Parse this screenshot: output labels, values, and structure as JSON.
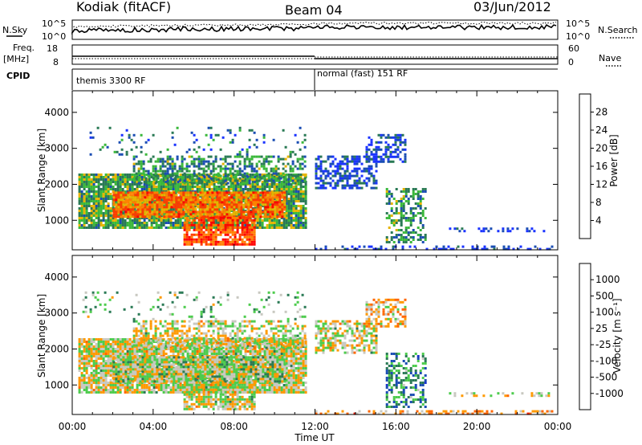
{
  "header": {
    "station": "Kodiak (fitACF)",
    "beam": "Beam 04",
    "date": "03/Jun/2012"
  },
  "top_panels": {
    "nsky_label": "N.Sky",
    "nsearch_label": "N.Search",
    "freq_label_line1": "Freq.",
    "freq_label_line2": "[MHz]",
    "nave_label": "Nave",
    "cpid_label": "CPID",
    "noise_left_ticks": [
      "10^5",
      "10^0"
    ],
    "noise_right_ticks": [
      "10^5",
      "10^0"
    ],
    "freq_left_ticks": [
      "18",
      "8"
    ],
    "nave_right_ticks": [
      "60",
      "0"
    ],
    "cpid_segments": [
      {
        "label": "themis 3300 RF",
        "start_hour": 0,
        "end_hour": 12
      },
      {
        "label": "normal (fast) 151 RF",
        "start_hour": 12,
        "end_hour": 24
      }
    ]
  },
  "chart_data": [
    {
      "type": "heatmap",
      "name": "power",
      "xlabel": "",
      "ylabel": "Slant Range [km]",
      "xlim": [
        0,
        24
      ],
      "ylim": [
        180,
        4600
      ],
      "y_ticks": [
        1000,
        2000,
        3000,
        4000
      ],
      "colorbar_label": "Power [dB]",
      "colorbar_ticks": [
        "4",
        "8",
        "12",
        "16",
        "20",
        "24",
        "28"
      ],
      "colorbar_colors": [
        "#1a33ff",
        "#1a4db3",
        "#2a7a55",
        "#3bb83b",
        "#e6b400",
        "#ff8000",
        "#ff3b00",
        "#ff0000"
      ],
      "scatter_bands": [
        {
          "t0": 0.3,
          "t1": 11.5,
          "r0": 800,
          "r1": 2300,
          "dens": 0.9,
          "level": 0.4
        },
        {
          "t0": 2.0,
          "t1": 10.5,
          "r0": 1100,
          "r1": 1800,
          "dens": 0.9,
          "level": 0.72
        },
        {
          "t0": 5.5,
          "t1": 9.0,
          "r0": 300,
          "r1": 1100,
          "dens": 0.8,
          "level": 0.8
        },
        {
          "t0": 3.0,
          "t1": 11.5,
          "r0": 2000,
          "r1": 2800,
          "dens": 0.5,
          "level": 0.35
        },
        {
          "t0": 0.5,
          "t1": 11.5,
          "r0": 2800,
          "r1": 3600,
          "dens": 0.08,
          "level": 0.25
        },
        {
          "t0": 12.0,
          "t1": 15.0,
          "r0": 1900,
          "r1": 2800,
          "dens": 0.6,
          "level": 0.15
        },
        {
          "t0": 14.5,
          "t1": 16.5,
          "r0": 2600,
          "r1": 3400,
          "dens": 0.5,
          "level": 0.15
        },
        {
          "t0": 15.5,
          "t1": 17.5,
          "r0": 400,
          "r1": 1900,
          "dens": 0.45,
          "level": 0.35
        },
        {
          "t0": 12.0,
          "t1": 24.0,
          "r0": 180,
          "r1": 300,
          "dens": 0.35,
          "level": 0.1
        },
        {
          "t0": 18.5,
          "t1": 23.5,
          "r0": 680,
          "r1": 800,
          "dens": 0.25,
          "level": 0.1
        }
      ]
    },
    {
      "type": "heatmap",
      "name": "velocity",
      "xlabel": "Time UT",
      "ylabel": "Slant Range [km]",
      "xlim": [
        0,
        24
      ],
      "ylim": [
        180,
        4600
      ],
      "y_ticks": [
        1000,
        2000,
        3000,
        4000
      ],
      "x_ticks": [
        "00:00",
        "04:00",
        "08:00",
        "12:00",
        "16:00",
        "20:00",
        "00:00"
      ],
      "colorbar_label": "Velocity [m s⁻¹]",
      "colorbar_ticks": [
        "1000",
        "500",
        "100",
        "25",
        "-25",
        "-100",
        "-500",
        "-1000"
      ],
      "colorbar_colors": [
        "#1a33cc",
        "#1a4db3",
        "#2a7a55",
        "#4dcc4d",
        "#c8c8c0",
        "#ff9900",
        "#ff6600",
        "#ff2200",
        "#ff0000"
      ],
      "scatter_bands": [
        {
          "t0": 0.3,
          "t1": 11.5,
          "r0": 800,
          "r1": 2300,
          "dens": 0.9,
          "level": 0.5
        },
        {
          "t0": 2.0,
          "t1": 10.5,
          "r0": 1100,
          "r1": 1800,
          "dens": 0.9,
          "level": 0.55
        },
        {
          "t0": 5.5,
          "t1": 9.0,
          "r0": 300,
          "r1": 1100,
          "dens": 0.8,
          "level": 0.5
        },
        {
          "t0": 3.0,
          "t1": 11.5,
          "r0": 2000,
          "r1": 2800,
          "dens": 0.5,
          "level": 0.5
        },
        {
          "t0": 0.5,
          "t1": 11.5,
          "r0": 2800,
          "r1": 3600,
          "dens": 0.08,
          "level": 0.6
        },
        {
          "t0": 12.0,
          "t1": 15.0,
          "r0": 1900,
          "r1": 2800,
          "dens": 0.6,
          "level": 0.5
        },
        {
          "t0": 14.5,
          "t1": 16.5,
          "r0": 2600,
          "r1": 3400,
          "dens": 0.5,
          "level": 0.4
        },
        {
          "t0": 15.5,
          "t1": 17.5,
          "r0": 400,
          "r1": 1900,
          "dens": 0.45,
          "level": 0.72
        },
        {
          "t0": 12.0,
          "t1": 24.0,
          "r0": 180,
          "r1": 300,
          "dens": 0.35,
          "level": 0.38
        },
        {
          "t0": 18.5,
          "t1": 23.5,
          "r0": 680,
          "r1": 800,
          "dens": 0.25,
          "level": 0.5
        }
      ]
    }
  ]
}
